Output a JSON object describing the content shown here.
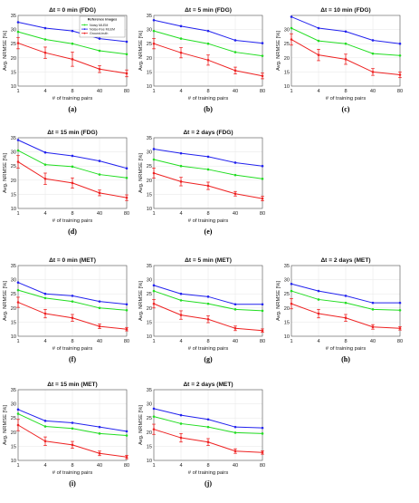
{
  "figure": {
    "colors": {
      "noisy": "#22dd22",
      "noise_free": "#2222ee",
      "ground_truth": "#ee2222",
      "grid": "#e6e6e6"
    },
    "legend": {
      "title": "Reference images",
      "entries": [
        "Noisy MLEM",
        "Noise-free MLEM",
        "Ground-truth"
      ]
    },
    "ylabel": "Avg. NRMSE [%]",
    "xlabel": "# of training pairs"
  },
  "chart_data": [
    {
      "type": "line",
      "panel_label": "(a)",
      "title": "Δt = 0 min (FDG)",
      "categories": [
        "1",
        "4",
        "8",
        "40",
        "80"
      ],
      "ylim": [
        10,
        35
      ],
      "yticks": [
        10,
        15,
        20,
        25,
        30,
        35
      ],
      "series": [
        {
          "name": "Noise-free MLEM",
          "values": [
            32.6,
            30.5,
            29.5,
            26.8,
            25.7
          ]
        },
        {
          "name": "Noisy MLEM",
          "values": [
            29.2,
            26.5,
            25.0,
            22.5,
            21.3
          ]
        },
        {
          "name": "Ground-truth",
          "values": [
            25.2,
            21.8,
            19.5,
            16.0,
            14.5
          ],
          "error": [
            2.0,
            2.0,
            2.5,
            1.2,
            1.2
          ]
        }
      ]
    },
    {
      "type": "line",
      "panel_label": "(b)",
      "title": "Δt = 5 min (FDG)",
      "categories": [
        "1",
        "4",
        "8",
        "40",
        "80"
      ],
      "ylim": [
        10,
        35
      ],
      "yticks": [
        10,
        15,
        20,
        25,
        30,
        35
      ],
      "series": [
        {
          "name": "Noise-free MLEM",
          "values": [
            33.3,
            31.2,
            29.5,
            26.2,
            25.2
          ]
        },
        {
          "name": "Noisy MLEM",
          "values": [
            29.5,
            26.8,
            25.0,
            22.0,
            20.7
          ]
        },
        {
          "name": "Ground-truth",
          "values": [
            25.0,
            21.8,
            19.2,
            15.5,
            13.6
          ],
          "error": [
            1.8,
            1.8,
            1.8,
            1.2,
            1.0
          ]
        }
      ]
    },
    {
      "type": "line",
      "panel_label": "(c)",
      "title": "Δt = 10 min (FDG)",
      "categories": [
        "1",
        "4",
        "8",
        "40",
        "80"
      ],
      "ylim": [
        10,
        35
      ],
      "yticks": [
        10,
        15,
        20,
        25,
        30
      ],
      "series": [
        {
          "name": "Noise-free MLEM",
          "values": [
            34.5,
            30.5,
            29.3,
            26.2,
            25.0
          ]
        },
        {
          "name": "Noisy MLEM",
          "values": [
            30.5,
            26.0,
            25.0,
            21.5,
            20.8
          ]
        },
        {
          "name": "Ground-truth",
          "values": [
            26.5,
            21.0,
            19.5,
            15.0,
            14.0
          ],
          "error": [
            2.0,
            2.0,
            1.8,
            1.2,
            1.0
          ]
        }
      ]
    },
    {
      "type": "line",
      "panel_label": "(d)",
      "title": "Δt = 15 min (FDG)",
      "categories": [
        "1",
        "4",
        "8",
        "40",
        "80"
      ],
      "ylim": [
        10,
        35
      ],
      "yticks": [
        10,
        15,
        20,
        25,
        30,
        35
      ],
      "series": [
        {
          "name": "Noise-free MLEM",
          "values": [
            34.2,
            29.8,
            28.6,
            26.8,
            24.2
          ]
        },
        {
          "name": "Noisy MLEM",
          "values": [
            30.5,
            25.5,
            24.8,
            22.0,
            20.8
          ]
        },
        {
          "name": "Ground-truth",
          "values": [
            26.5,
            20.5,
            19.0,
            15.5,
            13.8
          ],
          "error": [
            2.2,
            2.0,
            1.8,
            1.0,
            1.0
          ]
        }
      ]
    },
    {
      "type": "line",
      "panel_label": "(e)",
      "title": "Δt = 2 days (FDG)",
      "categories": [
        "1",
        "4",
        "8",
        "40",
        "80"
      ],
      "ylim": [
        10,
        35
      ],
      "yticks": [
        10,
        15,
        20,
        25,
        30,
        35
      ],
      "series": [
        {
          "name": "Noise-free MLEM",
          "values": [
            31.0,
            29.5,
            28.3,
            26.2,
            25.0
          ]
        },
        {
          "name": "Noisy MLEM",
          "values": [
            27.3,
            25.0,
            23.8,
            21.8,
            20.5
          ]
        },
        {
          "name": "Ground-truth",
          "values": [
            22.5,
            19.5,
            18.0,
            15.2,
            13.5
          ],
          "error": [
            1.8,
            1.5,
            1.3,
            0.8,
            0.8
          ]
        }
      ]
    },
    {
      "type": "line",
      "panel_label": "(f)",
      "title": "Δt = 0 min (MET)",
      "categories": [
        "1",
        "4",
        "8",
        "40",
        "80"
      ],
      "ylim": [
        10,
        35
      ],
      "yticks": [
        10,
        15,
        20,
        25,
        30,
        35
      ],
      "series": [
        {
          "name": "Noise-free MLEM",
          "values": [
            29.0,
            25.0,
            24.3,
            22.3,
            21.3
          ]
        },
        {
          "name": "Noisy MLEM",
          "values": [
            26.3,
            23.5,
            22.3,
            20.0,
            19.2
          ]
        },
        {
          "name": "Ground-truth",
          "values": [
            22.0,
            18.0,
            16.5,
            13.5,
            12.5
          ],
          "error": [
            1.8,
            1.5,
            1.2,
            0.8,
            0.6
          ]
        }
      ]
    },
    {
      "type": "line",
      "panel_label": "(g)",
      "title": "Δt = 5 min (MET)",
      "categories": [
        "1",
        "4",
        "8",
        "40",
        "80"
      ],
      "ylim": [
        10,
        35
      ],
      "yticks": [
        10,
        15,
        20,
        25,
        30,
        35
      ],
      "series": [
        {
          "name": "Noise-free MLEM",
          "values": [
            28.0,
            25.0,
            24.0,
            21.3,
            21.3
          ]
        },
        {
          "name": "Noisy MLEM",
          "values": [
            26.0,
            22.7,
            21.5,
            19.5,
            19.0
          ]
        },
        {
          "name": "Ground-truth",
          "values": [
            21.5,
            17.5,
            16.0,
            12.8,
            12.0
          ],
          "error": [
            1.5,
            1.5,
            1.2,
            0.8,
            0.6
          ]
        }
      ]
    },
    {
      "type": "line",
      "panel_label": "(h)",
      "title": "Δt = 2 days (MET)",
      "categories": [
        "1",
        "4",
        "8",
        "40",
        "80"
      ],
      "ylim": [
        10,
        35
      ],
      "yticks": [
        10,
        15,
        20,
        25,
        30,
        35
      ],
      "series": [
        {
          "name": "Noise-free MLEM",
          "values": [
            28.5,
            26.0,
            24.3,
            21.8,
            21.8
          ]
        },
        {
          "name": "Noisy MLEM",
          "values": [
            26.0,
            23.0,
            21.8,
            19.5,
            19.2
          ]
        },
        {
          "name": "Ground-truth",
          "values": [
            21.5,
            18.0,
            16.5,
            13.3,
            12.8
          ],
          "error": [
            1.8,
            1.5,
            1.2,
            0.8,
            0.6
          ]
        }
      ]
    },
    {
      "type": "line",
      "panel_label": "(i)",
      "title": "Δt = 15 min (MET)",
      "categories": [
        "1",
        "4",
        "8",
        "40",
        "80"
      ],
      "ylim": [
        10,
        35
      ],
      "yticks": [
        10,
        15,
        20,
        25,
        30,
        35
      ],
      "series": [
        {
          "name": "Noise-free MLEM",
          "values": [
            28.0,
            24.0,
            23.3,
            21.8,
            20.3
          ]
        },
        {
          "name": "Noisy MLEM",
          "values": [
            26.5,
            22.0,
            21.3,
            19.5,
            18.8
          ]
        },
        {
          "name": "Ground-truth",
          "values": [
            22.5,
            16.8,
            15.5,
            12.5,
            11.2
          ],
          "error": [
            2.0,
            1.5,
            1.2,
            0.8,
            0.6
          ]
        }
      ]
    },
    {
      "type": "line",
      "panel_label": "(j)",
      "title": "Δt = 2 days (MET)",
      "categories": [
        "1",
        "4",
        "8",
        "40",
        "80"
      ],
      "ylim": [
        10,
        35
      ],
      "yticks": [
        10,
        15,
        20,
        25,
        30,
        35
      ],
      "series": [
        {
          "name": "Noise-free MLEM",
          "values": [
            28.3,
            26.0,
            24.5,
            21.8,
            21.5
          ]
        },
        {
          "name": "Noisy MLEM",
          "values": [
            25.5,
            23.0,
            21.8,
            19.8,
            19.5
          ]
        },
        {
          "name": "Ground-truth",
          "values": [
            21.0,
            18.0,
            16.5,
            13.3,
            12.8
          ],
          "error": [
            1.8,
            1.5,
            1.2,
            0.8,
            0.6
          ]
        }
      ]
    }
  ]
}
